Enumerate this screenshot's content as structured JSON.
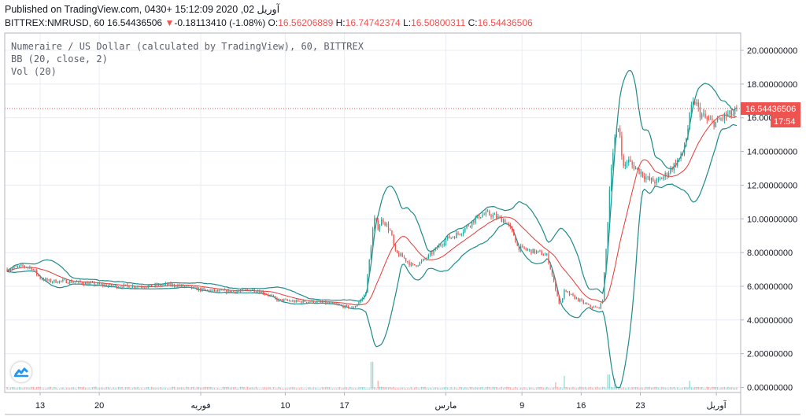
{
  "header": {
    "published_line": "Published on TradingView.com, آوریل 02, 2020 15:12:09 +0430",
    "symbol_label": "BITTREX:NMRUSD, 60",
    "last_value": "16.54436506",
    "change_arrow": "▼",
    "change_text": "-0.18113410 (-1.08%)",
    "o_label": "O:",
    "o_value": "16.56206889",
    "h_label": "H:",
    "h_value": "16.74742374",
    "l_label": "L:",
    "l_value": "16.50800311",
    "c_label": "C:",
    "c_value": "16.54436506"
  },
  "legend": {
    "title": "Numeraire / US Dollar (calculated by TradingView), 60, BITTREX",
    "bb": "BB (20, close, 2)",
    "vol": "Vol (20)"
  },
  "price_badge": {
    "value": "16.54436506",
    "countdown": "17:54"
  },
  "colors": {
    "up": "#26a69a",
    "down": "#ef5350",
    "bb_band": "#1f8a8a",
    "bb_basis": "#e53935",
    "grid": "#e9ecf2",
    "price_line": "#ef5350"
  },
  "chart_data": {
    "type": "candlestick",
    "ylim": [
      0,
      21
    ],
    "y_ticks": [
      "20.00000000",
      "18.00000000",
      "16.00000000",
      "14.00000000",
      "12.00000000",
      "10.00000000",
      "8.00000000",
      "6.00000000",
      "4.00000000",
      "2.00000000",
      "0.00000000"
    ],
    "x_ticks": [
      {
        "label": "13",
        "day": 4
      },
      {
        "label": "20",
        "day": 11
      },
      {
        "label": "فوریه",
        "day": 23
      },
      {
        "label": "10",
        "day": 33
      },
      {
        "label": "17",
        "day": 40
      },
      {
        "label": "مارس",
        "day": 52
      },
      {
        "label": "9",
        "day": 61
      },
      {
        "label": "16",
        "day": 68
      },
      {
        "label": "23",
        "day": 75
      },
      {
        "label": "آوریل",
        "day": 84
      }
    ],
    "x_range_days": [
      0,
      86.5
    ],
    "last_price": 16.54436506,
    "price_path": [
      [
        0,
        7.0
      ],
      [
        2,
        7.2
      ],
      [
        3,
        7.1
      ],
      [
        4,
        6.5
      ],
      [
        5,
        6.3
      ],
      [
        7,
        6.3
      ],
      [
        9,
        6.2
      ],
      [
        11,
        6.1
      ],
      [
        13,
        6.0
      ],
      [
        15,
        6.0
      ],
      [
        17,
        6.0
      ],
      [
        19,
        6.1
      ],
      [
        21,
        6.0
      ],
      [
        23,
        5.8
      ],
      [
        25,
        5.7
      ],
      [
        27,
        5.7
      ],
      [
        29,
        5.8
      ],
      [
        30,
        5.7
      ],
      [
        31,
        5.5
      ],
      [
        32,
        5.2
      ],
      [
        34,
        5.1
      ],
      [
        36,
        5.1
      ],
      [
        38,
        5.0
      ],
      [
        40,
        4.8
      ],
      [
        41,
        4.7
      ],
      [
        42,
        5.2
      ],
      [
        42.5,
        5.6
      ],
      [
        43.5,
        10.0
      ],
      [
        44,
        9.5
      ],
      [
        44.5,
        10.0
      ],
      [
        45,
        9.6
      ],
      [
        45.5,
        9.2
      ],
      [
        46,
        8.0
      ],
      [
        47,
        7.7
      ],
      [
        48,
        7.2
      ],
      [
        49,
        7.4
      ],
      [
        50,
        7.8
      ],
      [
        51,
        8.3
      ],
      [
        52,
        8.8
      ],
      [
        53,
        9.0
      ],
      [
        54,
        9.3
      ],
      [
        55,
        9.8
      ],
      [
        56,
        10.2
      ],
      [
        57,
        10.3
      ],
      [
        58,
        10.1
      ],
      [
        59,
        9.9
      ],
      [
        60,
        9.1
      ],
      [
        60.5,
        8.3
      ],
      [
        62,
        8.1
      ],
      [
        63,
        8.0
      ],
      [
        64,
        7.8
      ],
      [
        64.5,
        6.8
      ],
      [
        65,
        5.8
      ],
      [
        65.5,
        4.8
      ],
      [
        66,
        5.7
      ],
      [
        67,
        5.4
      ],
      [
        68,
        5.1
      ],
      [
        69,
        4.8
      ],
      [
        70,
        4.7
      ],
      [
        70.5,
        5.0
      ],
      [
        71,
        8.5
      ],
      [
        71.5,
        13.0
      ],
      [
        72,
        14.8
      ],
      [
        72.5,
        15.5
      ],
      [
        73,
        13.0
      ],
      [
        73.5,
        13.5
      ],
      [
        74,
        13.2
      ],
      [
        75,
        12.8
      ],
      [
        76,
        12.3
      ],
      [
        77,
        12.2
      ],
      [
        78,
        12.6
      ],
      [
        79,
        13.2
      ],
      [
        80,
        13.8
      ],
      [
        80.5,
        15.0
      ],
      [
        81,
        16.5
      ],
      [
        81.5,
        17.0
      ],
      [
        82,
        16.3
      ],
      [
        83,
        15.8
      ],
      [
        84,
        15.7
      ],
      [
        85,
        16.1
      ],
      [
        86,
        16.2
      ],
      [
        86.5,
        16.54
      ]
    ],
    "volume_spikes": [
      {
        "day": 43.3,
        "value": 1.1
      },
      {
        "day": 66,
        "value": 0.55
      },
      {
        "day": 71.2,
        "value": 0.6
      },
      {
        "day": 44,
        "value": 0.35
      },
      {
        "day": 65,
        "value": 0.3
      },
      {
        "day": 72,
        "value": 0.45
      },
      {
        "day": 80.8,
        "value": 0.35
      }
    ]
  }
}
